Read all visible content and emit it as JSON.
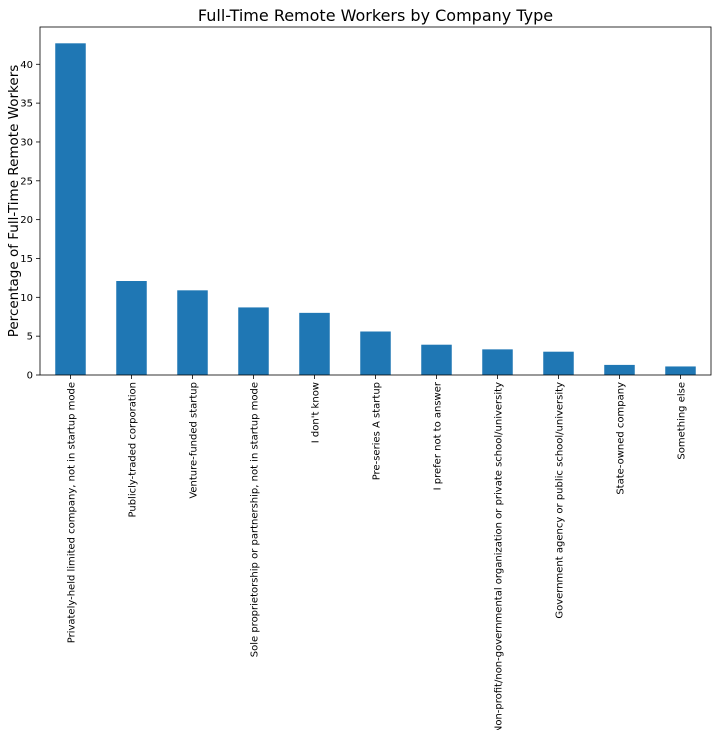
{
  "chart_data": {
    "type": "bar",
    "title": "Full-Time Remote Workers by Company Type",
    "ylabel": "Percentage of Full-Time Remote Workers",
    "xlabel": "",
    "categories": [
      "Privately-held limited company, not in startup mode",
      "Publicly-traded corporation",
      "Venture-funded startup",
      "Sole proprietorship or partnership, not in startup mode",
      "I don't know",
      "Pre-series A startup",
      "I prefer not to answer",
      "Non-profit/non-governmental organization or private school/university",
      "Government agency or public school/university",
      "State-owned company",
      "Something else"
    ],
    "values": [
      42.7,
      12.1,
      10.9,
      8.7,
      8.0,
      5.6,
      3.9,
      3.3,
      3.0,
      1.3,
      1.1
    ],
    "ylim": [
      0,
      44.8
    ],
    "yticks": [
      0,
      5,
      10,
      15,
      20,
      25,
      30,
      35,
      40
    ],
    "grid": false,
    "color": "#1f77b4"
  }
}
